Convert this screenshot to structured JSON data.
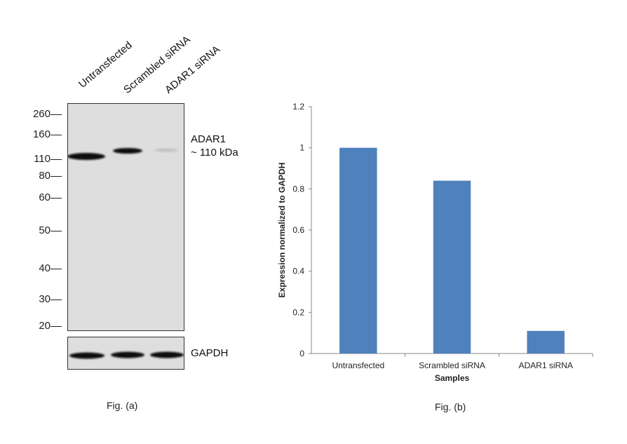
{
  "figure_a": {
    "lane_labels": [
      "Untransfected",
      "Scrambled siRNA",
      "ADAR1 siRNA"
    ],
    "mw_markers": [
      "260",
      "160",
      "110",
      "80",
      "60",
      "50",
      "40",
      "30",
      "20"
    ],
    "target_label_line1": "ADAR1",
    "target_label_line2": "~ 110 kDa",
    "loading_control_label": "GAPDH",
    "caption": "Fig. (a)"
  },
  "figure_b": {
    "caption": "Fig. (b)"
  },
  "chart_data": {
    "type": "bar",
    "categories": [
      "Untransfected",
      "Scrambled siRNA",
      "ADAR1 siRNA"
    ],
    "values": [
      1.0,
      0.84,
      0.11
    ],
    "title": "",
    "xlabel": "Samples",
    "ylabel": "Expression  normalized to GAPDH",
    "ylim": [
      0,
      1.2
    ],
    "yticks": [
      "0",
      "0.2",
      "0.4",
      "0.6",
      "0.8",
      "1",
      "1.2"
    ],
    "bar_color": "#4f81bd",
    "grid": false
  }
}
